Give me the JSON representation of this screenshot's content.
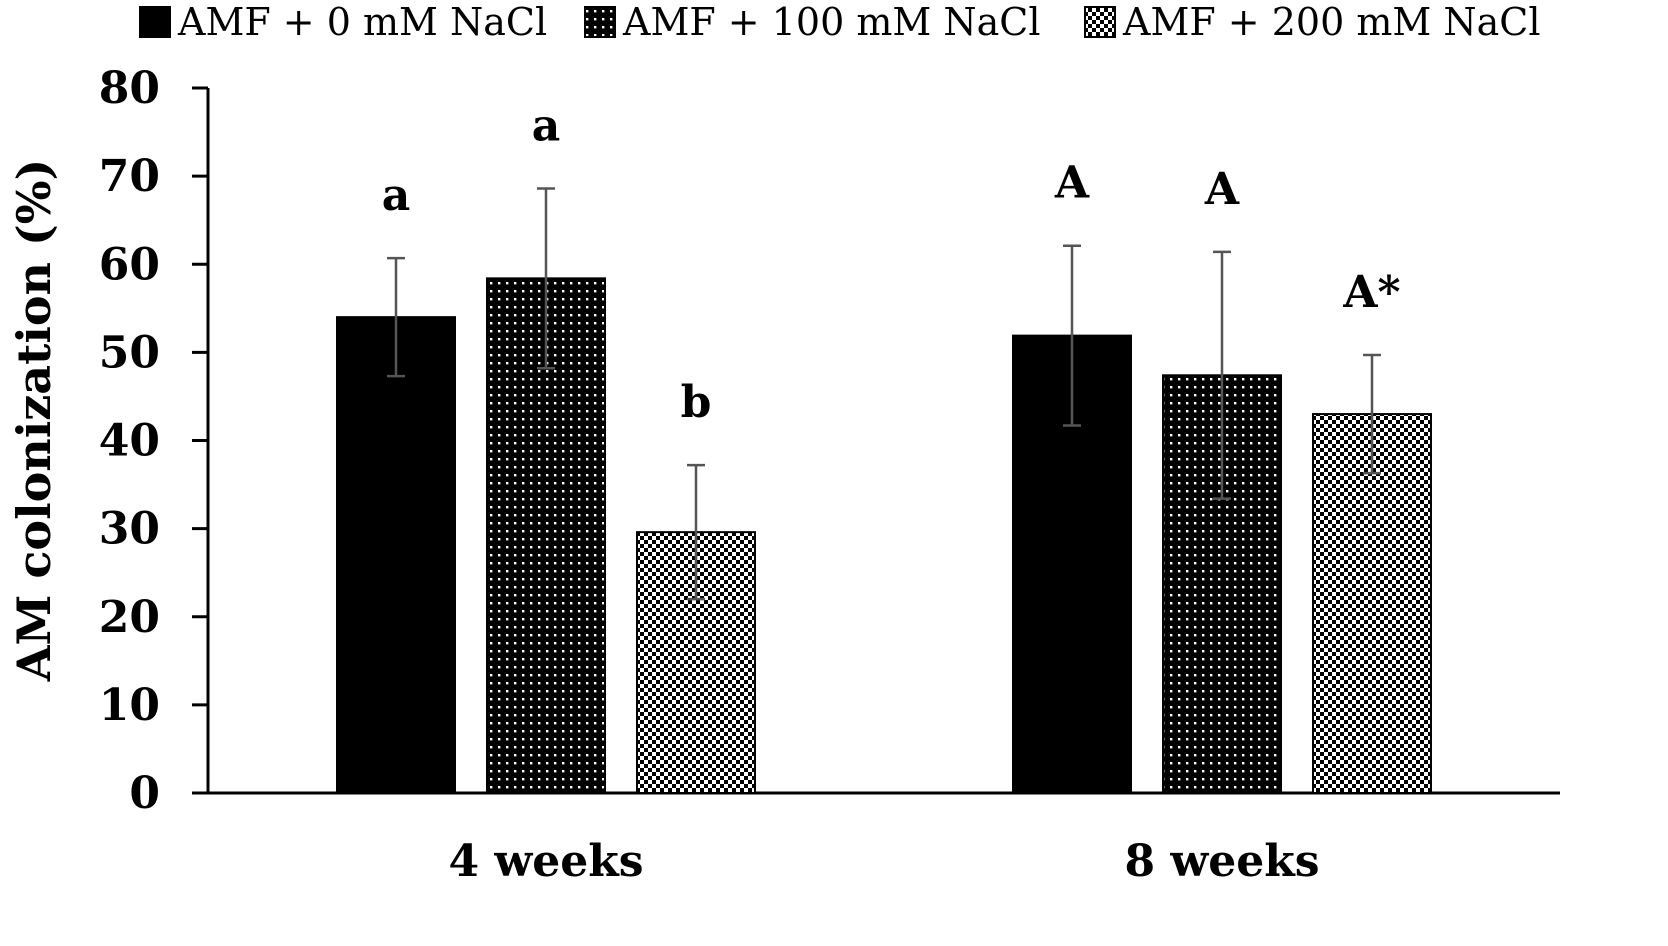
{
  "chart_data": {
    "type": "bar",
    "title": "",
    "xlabel": "",
    "ylabel": "AM colonization  (%)",
    "ylim": [
      0,
      80
    ],
    "yticks": [
      0,
      10,
      20,
      30,
      40,
      50,
      60,
      70,
      80
    ],
    "grid": false,
    "legend_position": "top",
    "categories": [
      "4 weeks",
      "8 weeks"
    ],
    "series": [
      {
        "name": "AMF + 0 mM NaCl",
        "pattern": "solid",
        "fill": "#000000",
        "values": [
          54.0,
          51.9
        ],
        "errors": [
          6.7,
          10.2
        ],
        "labels": [
          "a",
          "A"
        ]
      },
      {
        "name": "AMF + 100 mM NaCl",
        "pattern": "dense-dots",
        "fill": "#000000",
        "values": [
          58.4,
          47.4
        ],
        "errors": [
          10.2,
          14.0
        ],
        "labels": [
          "a",
          "A"
        ]
      },
      {
        "name": "AMF + 200 mM NaCl",
        "pattern": "checker",
        "fill": "#000000",
        "values": [
          29.6,
          43.0
        ],
        "errors": [
          7.6,
          6.7
        ],
        "labels": [
          "b",
          "A*"
        ]
      }
    ]
  },
  "colors": {
    "axis": "#000000",
    "error_bar": "#555555",
    "background": "#ffffff"
  }
}
